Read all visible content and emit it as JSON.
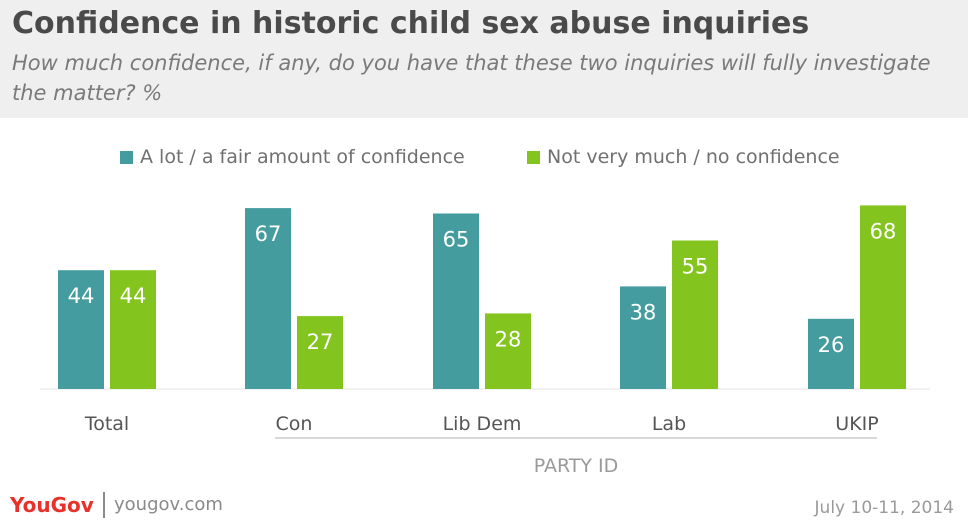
{
  "chart_data": {
    "type": "bar",
    "title": "Confidence in historic child sex abuse inquiries",
    "subtitle": "How much confidence, if any, do you have that these two inquiries will fully investigate the matter? %",
    "categories": [
      "Total",
      "Con",
      "Lib Dem",
      "Lab",
      "UKIP"
    ],
    "group_label": "PARTY ID",
    "series": [
      {
        "name": "A lot / a fair amount of confidence",
        "color": "#449c9e",
        "values": [
          44,
          67,
          65,
          38,
          26
        ]
      },
      {
        "name": "Not very much / no confidence",
        "color": "#84c41e",
        "values": [
          44,
          27,
          28,
          55,
          68
        ]
      }
    ],
    "ylim": [
      0,
      100
    ],
    "grid": false,
    "legend_position": "top-center"
  },
  "footer": {
    "brand": "YouGov",
    "site": "yougov.com",
    "date": "July 10-11, 2014"
  }
}
